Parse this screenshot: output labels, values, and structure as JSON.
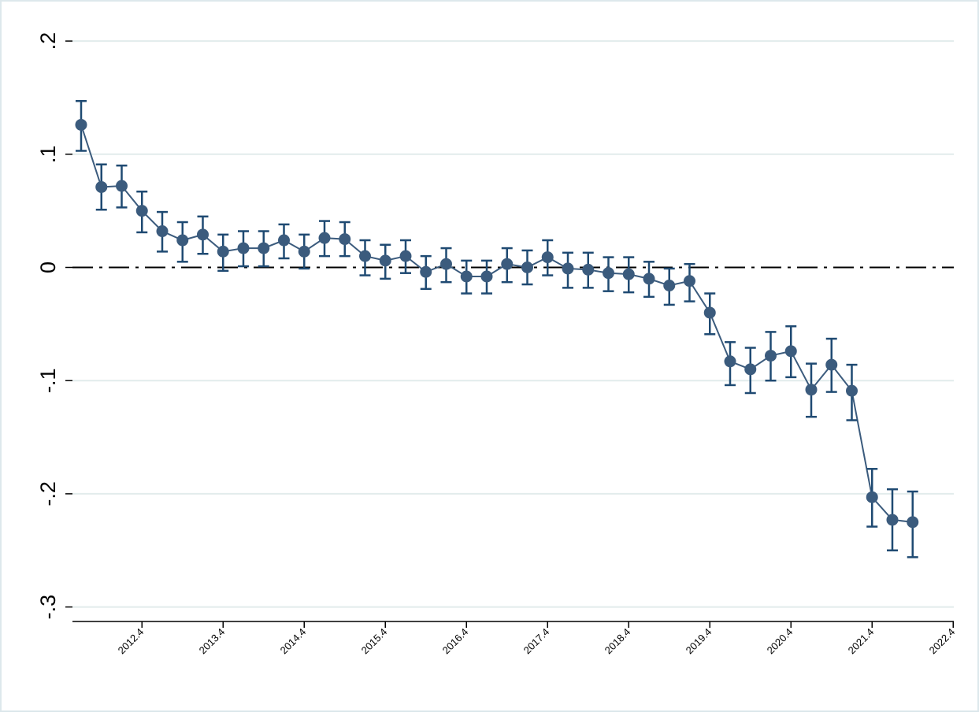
{
  "chart_data": {
    "type": "line",
    "title": "",
    "xlabel": "",
    "ylabel": "",
    "ylim": [
      -0.3,
      0.2
    ],
    "x_tick_labels": [
      "2012.4",
      "2013.4",
      "2014.4",
      "2015.4",
      "2016.4",
      "2017.4",
      "2018.4",
      "2019.4",
      "2020.4",
      "2021.4",
      "2022.4"
    ],
    "y_ticks": [
      0.2,
      0.1,
      0,
      -0.1,
      -0.2,
      -0.3
    ],
    "y_tick_labels": [
      ".2",
      ".1",
      "0",
      "-.1",
      "-.2",
      "-.3"
    ],
    "grid": "horizontal",
    "reference_line": 0,
    "colors": {
      "series": "#3b5b7d",
      "error_bar": "#1f4a72",
      "grid": "#e2ecec",
      "reference": "#000000",
      "frame_border": "#dde8ec"
    },
    "series": [
      {
        "x": [
          "2012.1",
          "2012.2",
          "2012.3",
          "2012.4",
          "2013.1",
          "2013.2",
          "2013.3",
          "2013.4",
          "2014.1",
          "2014.2",
          "2014.3",
          "2014.4",
          "2015.1",
          "2015.2",
          "2015.3",
          "2015.4",
          "2016.1",
          "2016.2",
          "2016.3",
          "2016.4",
          "2017.1",
          "2017.2",
          "2017.3",
          "2017.4",
          "2018.1",
          "2018.2",
          "2018.3",
          "2018.4",
          "2019.1",
          "2019.2",
          "2019.3",
          "2019.4",
          "2020.1",
          "2020.2",
          "2020.3",
          "2020.4",
          "2021.1",
          "2021.2",
          "2021.3",
          "2021.4",
          "2022.1",
          "2022.2"
        ],
        "values": [
          0.126,
          0.071,
          0.072,
          0.05,
          0.032,
          0.024,
          0.029,
          0.014,
          0.017,
          0.017,
          0.024,
          0.014,
          0.026,
          0.025,
          0.01,
          0.006,
          0.01,
          -0.004,
          0.003,
          -0.008,
          -0.008,
          0.003,
          0,
          0.009,
          -0.001,
          -0.002,
          -0.005,
          -0.006,
          -0.01,
          -0.016,
          -0.012,
          -0.04,
          -0.083,
          -0.09,
          -0.078,
          -0.074,
          -0.108,
          -0.086,
          -0.109,
          -0.203,
          -0.223,
          -0.225
        ],
        "ci_upper": [
          0.147,
          0.091,
          0.09,
          0.067,
          0.049,
          0.04,
          0.045,
          0.029,
          0.032,
          0.032,
          0.038,
          0.029,
          0.041,
          0.04,
          0.024,
          0.02,
          0.024,
          0.01,
          0.017,
          0.006,
          0.006,
          0.017,
          0.015,
          0.024,
          0.013,
          0.013,
          0.009,
          0.009,
          0.005,
          -0.001,
          0.003,
          -0.023,
          -0.066,
          -0.071,
          -0.057,
          -0.052,
          -0.085,
          -0.063,
          -0.086,
          -0.178,
          -0.196,
          -0.198
        ],
        "ci_lower": [
          0.103,
          0.051,
          0.053,
          0.031,
          0.014,
          0.005,
          0.012,
          -0.003,
          0.001,
          0.001,
          0.008,
          -0.001,
          0.01,
          0.01,
          -0.007,
          -0.01,
          -0.005,
          -0.019,
          -0.013,
          -0.023,
          -0.023,
          -0.013,
          -0.015,
          -0.007,
          -0.018,
          -0.018,
          -0.021,
          -0.022,
          -0.026,
          -0.033,
          -0.03,
          -0.059,
          -0.104,
          -0.111,
          -0.1,
          -0.097,
          -0.132,
          -0.11,
          -0.135,
          -0.229,
          -0.25,
          -0.256
        ]
      }
    ]
  }
}
